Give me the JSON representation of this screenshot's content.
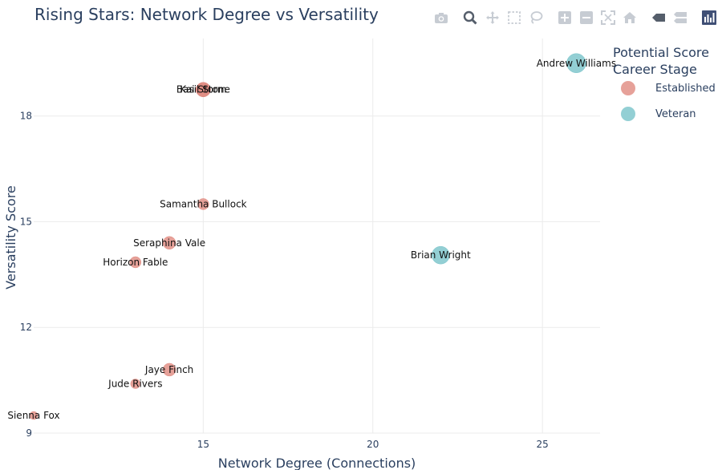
{
  "title": "Rising Stars: Network Degree vs Versatility",
  "legend": {
    "title_line1": "Potential Score",
    "title_line2": "Career Stage",
    "items": [
      {
        "label": "Established",
        "color": "#E08A80"
      },
      {
        "label": "Veteran",
        "color": "#78C3C9"
      }
    ]
  },
  "modebar": [
    "camera-icon",
    "zoom-icon",
    "pan-icon",
    "box-select-icon",
    "lasso-select-icon",
    "zoom-in-icon",
    "zoom-out-icon",
    "autoscale-icon",
    "reset-axes-icon",
    "spike-lines-icon",
    "compare-hover-icon",
    "plotly-logo-icon"
  ],
  "chart_data": {
    "type": "scatter",
    "title": "Rising Stars: Network Degree vs Versatility",
    "xlabel": "Network Degree (Connections)",
    "ylabel": "Versatility Score",
    "xlim": [
      10,
      26.7
    ],
    "ylim": [
      9,
      20.2
    ],
    "xticks": [
      15,
      20,
      25
    ],
    "yticks": [
      9,
      12,
      15,
      18
    ],
    "grid": true,
    "legend_position": "top-right",
    "series": [
      {
        "name": "Established",
        "color": "#E08A80",
        "points": [
          {
            "label": "Kai Storm",
            "x": 15,
            "y": 18.75,
            "size": 18
          },
          {
            "label": "Basil Stone",
            "x": 15,
            "y": 18.75,
            "size": 18
          },
          {
            "label": "Samantha Bullock",
            "x": 15,
            "y": 15.5,
            "size": 14
          },
          {
            "label": "Seraphina Vale",
            "x": 14,
            "y": 14.4,
            "size": 16
          },
          {
            "label": "Horizon Fable",
            "x": 13,
            "y": 13.85,
            "size": 14
          },
          {
            "label": "Jaye Finch",
            "x": 14,
            "y": 10.8,
            "size": 16
          },
          {
            "label": "Jude Rivers",
            "x": 13,
            "y": 10.4,
            "size": 12
          },
          {
            "label": "Sienna Fox",
            "x": 10,
            "y": 9.5,
            "size": 10
          }
        ]
      },
      {
        "name": "Veteran",
        "color": "#78C3C9",
        "points": [
          {
            "label": "Andrew Williams",
            "x": 26,
            "y": 19.5,
            "size": 24
          },
          {
            "label": "Brian Wright",
            "x": 22,
            "y": 14.05,
            "size": 22
          }
        ]
      }
    ]
  }
}
